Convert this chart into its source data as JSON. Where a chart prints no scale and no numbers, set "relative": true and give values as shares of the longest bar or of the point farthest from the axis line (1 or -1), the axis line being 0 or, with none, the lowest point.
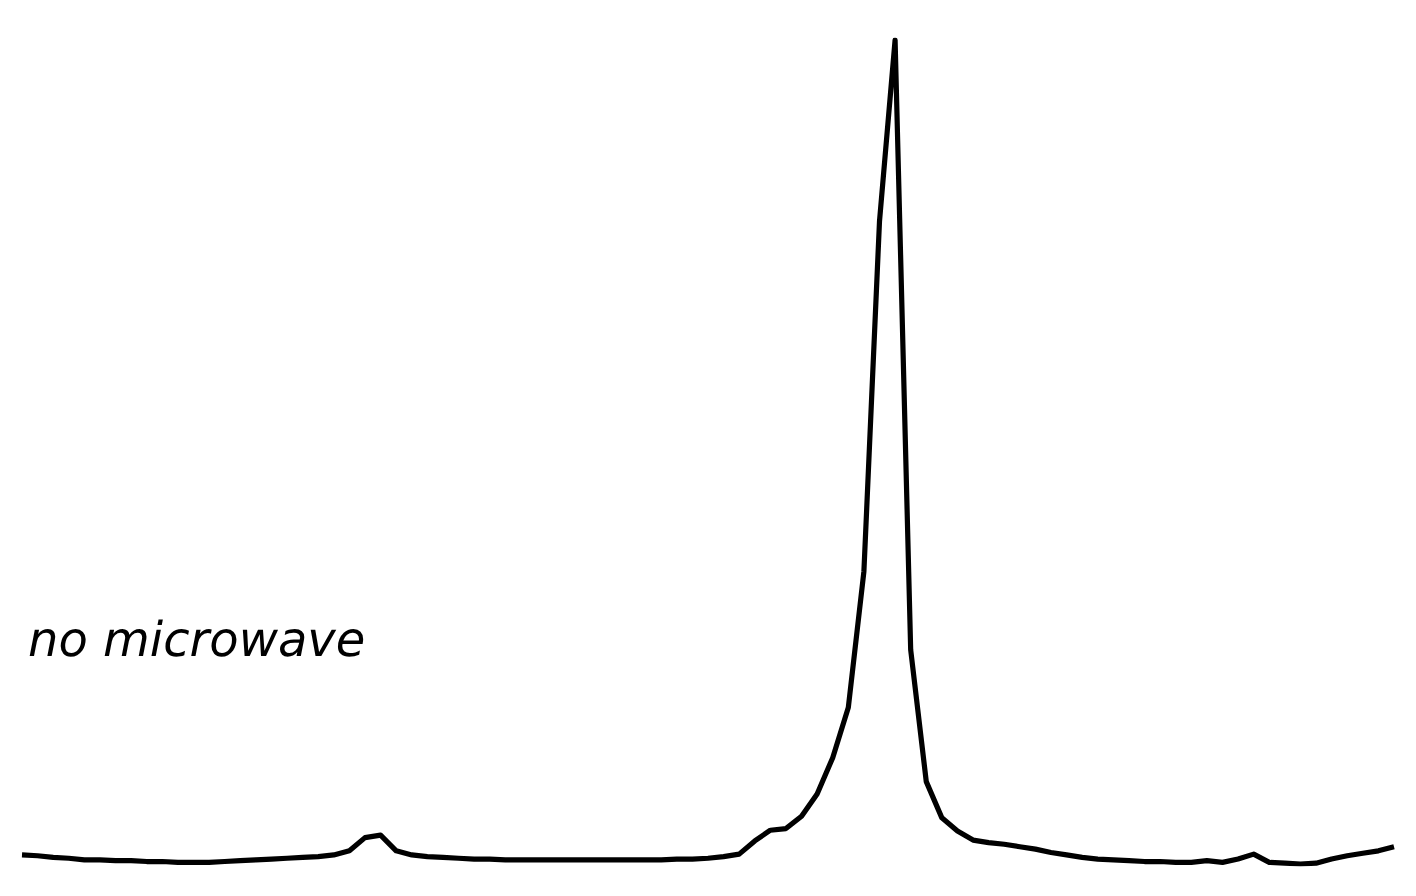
{
  "chart_data": {
    "type": "line",
    "relative": true,
    "annotations": [
      "no microwave"
    ],
    "categories": [
      null,
      null,
      null,
      null,
      null,
      null,
      null,
      null,
      null,
      null,
      null,
      null,
      null,
      null,
      null,
      null,
      null,
      null,
      null,
      null,
      null,
      null,
      null,
      null,
      null,
      null,
      null,
      null,
      null,
      null,
      null,
      null,
      null,
      null,
      null,
      null,
      null,
      null,
      null,
      null,
      null,
      null,
      null,
      null,
      null,
      null,
      null,
      null,
      null,
      null,
      null,
      null,
      null,
      null,
      null,
      null,
      null,
      null,
      null,
      null,
      null,
      null,
      null,
      null,
      null,
      null,
      null,
      null,
      null,
      null,
      null,
      null,
      null,
      null,
      null,
      null,
      null,
      null,
      null,
      null,
      null,
      null,
      null,
      null,
      null,
      null,
      null,
      null,
      null
    ],
    "series": [
      {
        "color": "#000000",
        "values": [
          0.011,
          0.01,
          0.008,
          0.007,
          0.005,
          0.005,
          0.004,
          0.004,
          0.003,
          0.003,
          0.002,
          0.002,
          0.002,
          0.003,
          0.004,
          0.005,
          0.006,
          0.007,
          0.008,
          0.009,
          0.011,
          0.016,
          0.032,
          0.035,
          0.016,
          0.011,
          0.009,
          0.008,
          0.007,
          0.006,
          0.006,
          0.005,
          0.005,
          0.005,
          0.005,
          0.005,
          0.005,
          0.005,
          0.005,
          0.005,
          0.005,
          0.005,
          0.006,
          0.006,
          0.007,
          0.009,
          0.012,
          0.028,
          0.041,
          0.043,
          0.058,
          0.085,
          0.129,
          0.19,
          0.355,
          0.78,
          1,
          0.26,
          0.1,
          0.056,
          0.04,
          0.029,
          0.026,
          0.024,
          0.021,
          0.018,
          0.014,
          0.011,
          0.008,
          0.006,
          0.005,
          0.004,
          0.003,
          0.003,
          0.002,
          0.002,
          0.004,
          0.002,
          0.006,
          0.012,
          0.002,
          0.001,
          0.0,
          0.001,
          0.006,
          0.01,
          0.013,
          0.016,
          0.021
        ]
      }
    ]
  }
}
